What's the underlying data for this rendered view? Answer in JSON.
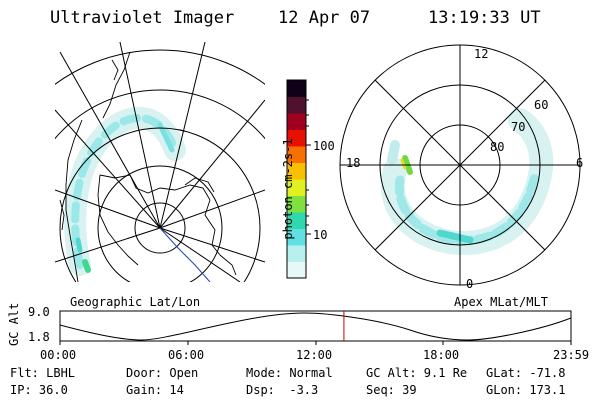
{
  "header": {
    "instrument": "Ultraviolet Imager",
    "date": "12 Apr 07",
    "time": "13:19:33 UT"
  },
  "geo_panel": {
    "caption": "Geographic Lat/Lon"
  },
  "mlt_panel": {
    "caption": "Apex MLat/MLT",
    "mlt_labels": [
      "12",
      "18",
      "6",
      "0"
    ],
    "lat_labels": [
      "60",
      "70",
      "80"
    ]
  },
  "colorbar": {
    "unit_label": "photon cm-2s-1",
    "ticks": [
      "100",
      "10"
    ],
    "scale": "log",
    "colors": [
      "#e8f8f8",
      "#b8f0f0",
      "#60e0e0",
      "#30d8b0",
      "#80e040",
      "#e0f020",
      "#f8c000",
      "#f87000",
      "#e81000",
      "#a00020",
      "#501030",
      "#100018"
    ]
  },
  "altitude_plot": {
    "ylabel": "GC Alt",
    "yticks": [
      "9.0",
      "1.8"
    ],
    "xticks": [
      "00:00",
      "06:00",
      "12:00",
      "18:00",
      "23:59"
    ],
    "current_time_marker": "13:19:33",
    "marker_color": "#c00000"
  },
  "info": {
    "filter": "Flt: LBHL",
    "door": "Door: Open",
    "mode": "Mode: Normal",
    "gc_alt": "GC Alt: 9.1 Re",
    "glat": "GLat: -71.8",
    "ip": "IP: 36.0",
    "gain": "Gain: 14",
    "dsp": "Dsp:  -3.3",
    "seq": "Seq: 39",
    "glon": "GLon: 173.1"
  }
}
